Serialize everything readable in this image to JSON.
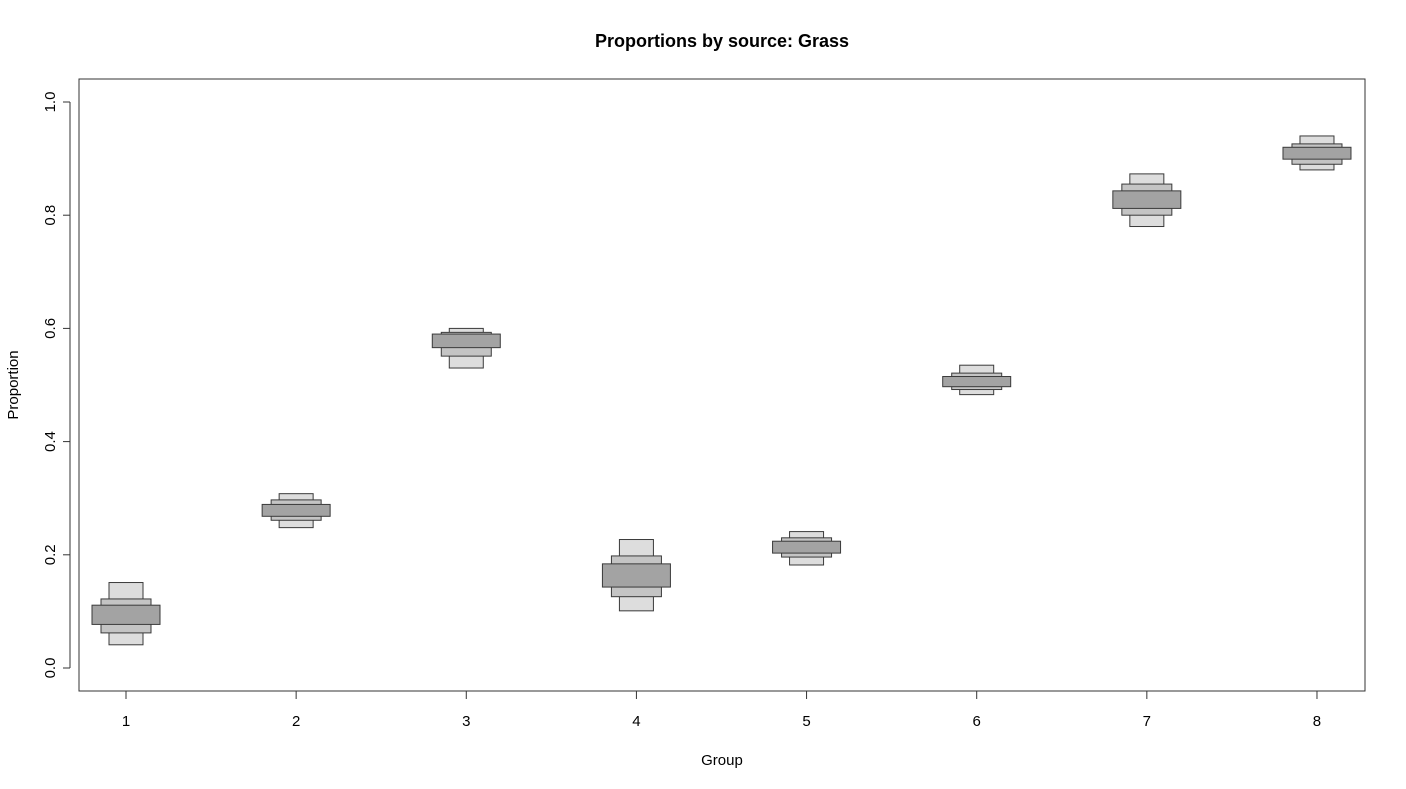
{
  "chart_data": {
    "type": "box",
    "title": "Proportions by source: Grass",
    "xlabel": "Group",
    "ylabel": "Proportion",
    "categories": [
      "1",
      "2",
      "3",
      "4",
      "5",
      "6",
      "7",
      "8"
    ],
    "ylim": [
      0.0,
      1.0
    ],
    "yticks": [
      "0.0",
      "0.2",
      "0.4",
      "0.6",
      "0.8",
      "1.0"
    ],
    "grid": false,
    "legend": "none",
    "colors": {
      "outer_fill": "#dddddd",
      "middle_fill": "#c4c4c4",
      "inner_fill": "#a3a3a3",
      "stroke": "#3a3a3a"
    },
    "groups": [
      {
        "group": "1",
        "outer": [
          0.041,
          0.151
        ],
        "middle": [
          0.062,
          0.122
        ],
        "inner": [
          0.077,
          0.111
        ]
      },
      {
        "group": "2",
        "outer": [
          0.248,
          0.308
        ],
        "middle": [
          0.261,
          0.297
        ],
        "inner": [
          0.268,
          0.289
        ]
      },
      {
        "group": "3",
        "outer": [
          0.53,
          0.6
        ],
        "middle": [
          0.551,
          0.593
        ],
        "inner": [
          0.566,
          0.59
        ]
      },
      {
        "group": "4",
        "outer": [
          0.101,
          0.227
        ],
        "middle": [
          0.126,
          0.198
        ],
        "inner": [
          0.143,
          0.184
        ]
      },
      {
        "group": "5",
        "outer": [
          0.182,
          0.241
        ],
        "middle": [
          0.196,
          0.23
        ],
        "inner": [
          0.203,
          0.224
        ]
      },
      {
        "group": "6",
        "outer": [
          0.483,
          0.535
        ],
        "middle": [
          0.492,
          0.521
        ],
        "inner": [
          0.497,
          0.515
        ]
      },
      {
        "group": "7",
        "outer": [
          0.78,
          0.873
        ],
        "middle": [
          0.8,
          0.855
        ],
        "inner": [
          0.812,
          0.843
        ]
      },
      {
        "group": "8",
        "outer": [
          0.88,
          0.94
        ],
        "middle": [
          0.89,
          0.926
        ],
        "inner": [
          0.899,
          0.92
        ]
      }
    ]
  }
}
